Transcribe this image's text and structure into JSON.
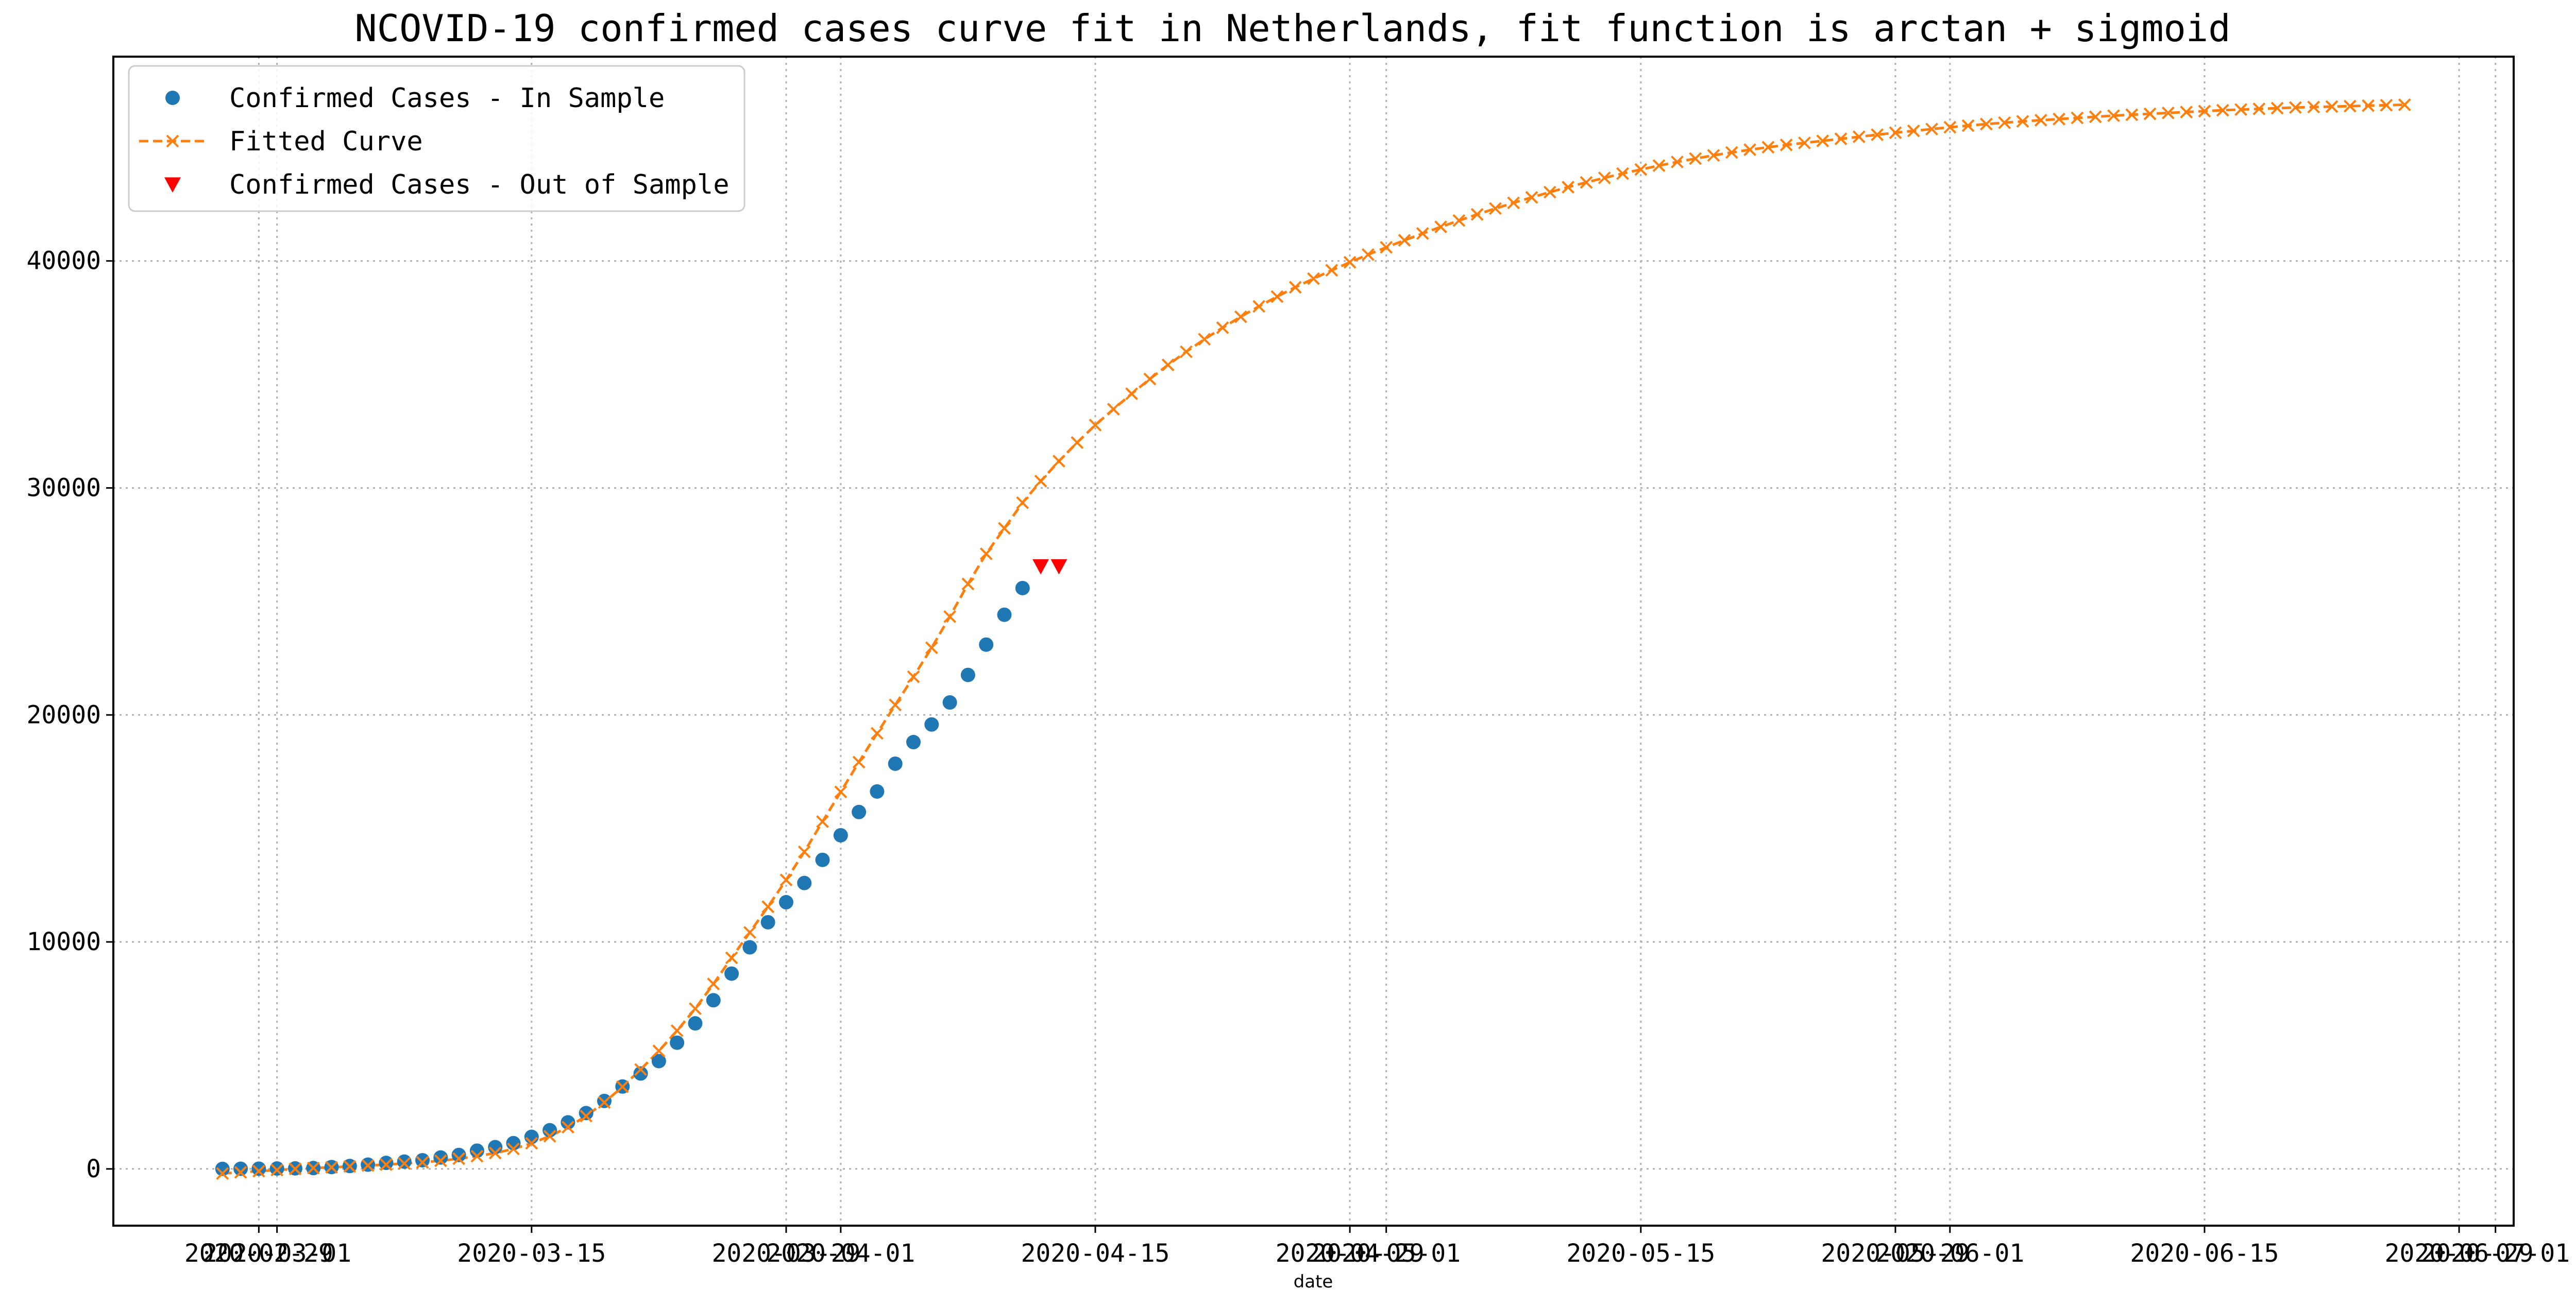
{
  "chart_data": {
    "type": "line",
    "title": "NCOVID-19 confirmed cases curve fit in Netherlands, fit function is arctan + sigmoid",
    "xlabel": "date",
    "ylabel": "",
    "x_axis_type": "date",
    "xlim": [
      "2020-02-21",
      "2020-07-02"
    ],
    "ylim": [
      -2500,
      49000
    ],
    "yticks": [
      0,
      10000,
      20000,
      30000,
      40000
    ],
    "xticks": [
      {
        "date": "2020-02-29",
        "label": "2020-02-29"
      },
      {
        "date": "2020-03-01",
        "label": "2020-03-01"
      },
      {
        "date": "2020-03-15",
        "label": "2020-03-15"
      },
      {
        "date": "2020-03-29",
        "label": "2020-03-29"
      },
      {
        "date": "2020-04-01",
        "label": "2020-04-01"
      },
      {
        "date": "2020-04-15",
        "label": "2020-04-15"
      },
      {
        "date": "2020-04-29",
        "label": "2020-04-29"
      },
      {
        "date": "2020-05-01",
        "label": "2020-05-01"
      },
      {
        "date": "2020-05-15",
        "label": "2020-05-15"
      },
      {
        "date": "2020-05-29",
        "label": "2020-05-29"
      },
      {
        "date": "2020-06-01",
        "label": "2020-06-01"
      },
      {
        "date": "2020-06-15",
        "label": "2020-06-15"
      },
      {
        "date": "2020-06-29",
        "label": "2020-06-29"
      },
      {
        "date": "2020-07-01",
        "label": "2020-07-01"
      }
    ],
    "grid": true,
    "legend_position": "top-left",
    "series": [
      {
        "name": "Confirmed Cases - In Sample",
        "style": "markers",
        "marker": "circle",
        "color": "#1f77b4",
        "x": [
          "2020-02-27",
          "2020-02-28",
          "2020-02-29",
          "2020-03-01",
          "2020-03-02",
          "2020-03-03",
          "2020-03-04",
          "2020-03-05",
          "2020-03-06",
          "2020-03-07",
          "2020-03-08",
          "2020-03-09",
          "2020-03-10",
          "2020-03-11",
          "2020-03-12",
          "2020-03-13",
          "2020-03-14",
          "2020-03-15",
          "2020-03-16",
          "2020-03-17",
          "2020-03-18",
          "2020-03-19",
          "2020-03-20",
          "2020-03-21",
          "2020-03-22",
          "2020-03-23",
          "2020-03-24",
          "2020-03-25",
          "2020-03-26",
          "2020-03-27",
          "2020-03-28",
          "2020-03-29",
          "2020-03-30",
          "2020-03-31",
          "2020-04-01",
          "2020-04-02",
          "2020-04-03",
          "2020-04-04",
          "2020-04-05",
          "2020-04-06",
          "2020-04-07",
          "2020-04-08",
          "2020-04-09",
          "2020-04-10",
          "2020-04-11"
        ],
        "values": [
          1,
          6,
          10,
          18,
          24,
          38,
          82,
          128,
          188,
          265,
          321,
          382,
          503,
          614,
          804,
          959,
          1135,
          1413,
          1705,
          2051,
          2460,
          2994,
          3631,
          4204,
          4749,
          5560,
          6412,
          7431,
          8603,
          9762,
          10866,
          11750,
          12595,
          13614,
          14697,
          15723,
          16627,
          17851,
          18803,
          19580,
          20549,
          21762,
          23097,
          24413,
          25587
        ]
      },
      {
        "name": "Fitted Curve",
        "style": "dashed-line-x-markers",
        "marker": "x",
        "color": "#ff7f0e",
        "x_start": "2020-02-27",
        "x_step_days": 1,
        "values": [
          -200,
          -150,
          -100,
          -50,
          0,
          40,
          70,
          110,
          150,
          190,
          240,
          290,
          360,
          450,
          560,
          700,
          880,
          1130,
          1440,
          1840,
          2330,
          2930,
          3620,
          4380,
          5200,
          6090,
          7060,
          8150,
          9300,
          10420,
          11550,
          12730,
          13970,
          15300,
          16610,
          17920,
          19190,
          20440,
          21680,
          22960,
          24330,
          25770,
          27100,
          28220,
          29350,
          30300,
          31180,
          32000,
          32770,
          33470,
          34150,
          34800,
          35420,
          36000,
          36550,
          37060,
          37540,
          38000,
          38430,
          38840,
          39220,
          39590,
          39940,
          40280,
          40600,
          40910,
          41210,
          41500,
          41780,
          42050,
          42310,
          42560,
          42800,
          43030,
          43250,
          43460,
          43660,
          43850,
          44030,
          44200,
          44360,
          44510,
          44650,
          44780,
          44900,
          45010,
          45110,
          45200,
          45290,
          45380,
          45470,
          45560,
          45650,
          45730,
          45810,
          45890,
          45960,
          46030,
          46090,
          46150,
          46200,
          46250,
          46300,
          46350,
          46400,
          46440,
          46480,
          46520,
          46560,
          46600,
          46640,
          46670,
          46700,
          46730,
          46760,
          46780,
          46800,
          46820,
          46840,
          46860,
          46880
        ]
      },
      {
        "name": "Confirmed Cases - Out of Sample",
        "style": "markers",
        "marker": "triangle-down",
        "color": "#ff0000",
        "x": [
          "2020-04-12",
          "2020-04-13"
        ],
        "values": [
          26551,
          26551
        ]
      }
    ]
  }
}
